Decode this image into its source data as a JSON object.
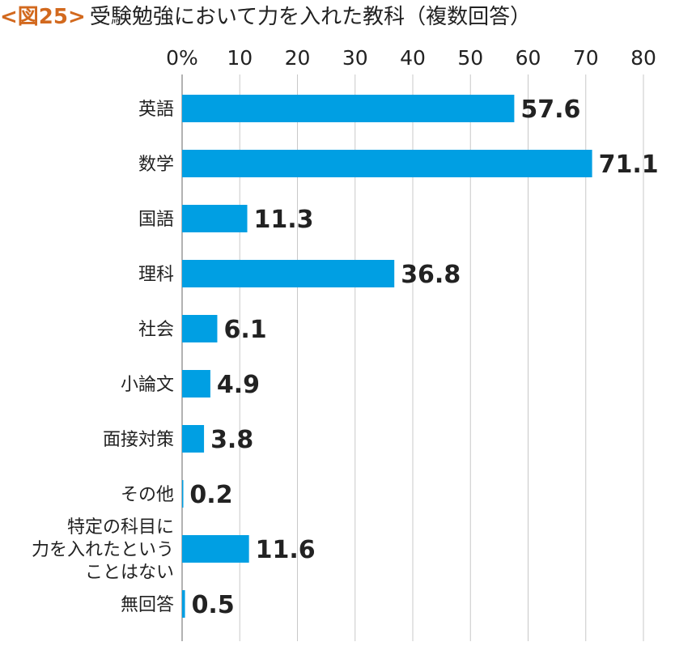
{
  "header": {
    "tag": "<図25>",
    "title": "受験勉強において力を入れた教科（複数回答）"
  },
  "colors": {
    "bar": "#009fe3",
    "tag": "#d2691e",
    "grid": "#c8c8c8",
    "axis": "#999999",
    "text": "#222222"
  },
  "chart_data": {
    "type": "bar",
    "orientation": "horizontal",
    "title": "受験勉強において力を入れた教科（複数回答）",
    "categories": [
      [
        "英語"
      ],
      [
        "数学"
      ],
      [
        "国語"
      ],
      [
        "理科"
      ],
      [
        "社会"
      ],
      [
        "小論文"
      ],
      [
        "面接対策"
      ],
      [
        "その他"
      ],
      [
        "特定の科目に",
        "力を入れたという",
        "ことはない"
      ],
      [
        "無回答"
      ]
    ],
    "values": [
      57.6,
      71.1,
      11.3,
      36.8,
      6.1,
      4.9,
      3.8,
      0.2,
      11.6,
      0.5
    ],
    "value_labels": [
      "57.6",
      "71.1",
      "11.3",
      "36.8",
      "6.1",
      "4.9",
      "3.8",
      "0.2",
      "11.6",
      "0.5"
    ],
    "xlim": [
      0,
      80
    ],
    "xticks": [
      0,
      10,
      20,
      30,
      40,
      50,
      60,
      70,
      80
    ],
    "xtick_labels": [
      "0%",
      "10",
      "20",
      "30",
      "40",
      "50",
      "60",
      "70",
      "80"
    ],
    "xlabel": "",
    "ylabel": "",
    "grid": true,
    "axis_position": "top"
  }
}
